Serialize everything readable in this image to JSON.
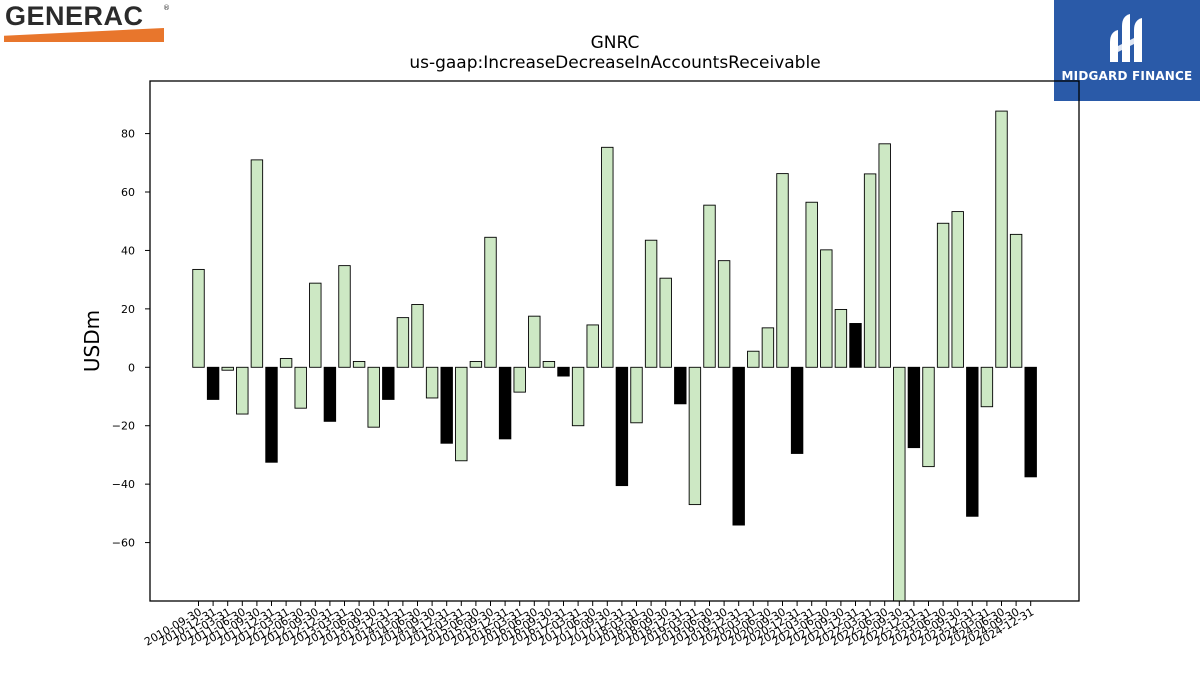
{
  "logos": {
    "left": {
      "text": "GENERAC",
      "mark": "®",
      "accent": "#e8762c"
    },
    "right": {
      "text": "MIDGARD FINANCE",
      "background": "#2a5aa8"
    }
  },
  "chart_data": {
    "type": "bar",
    "title": "GNRC",
    "subtitle": "us-gaap:IncreaseDecreaseInAccountsReceivable",
    "xlabel": "",
    "ylabel": "USDm",
    "ylim": [
      -80,
      98
    ],
    "yticks": [
      -60,
      -40,
      -20,
      0,
      20,
      40,
      60,
      80
    ],
    "grid": false,
    "colors": {
      "quarterly": "#cde8c4",
      "annual": "#000000"
    },
    "categories": [
      "2010-09-30",
      "2010-12-31",
      "2011-03-31",
      "2011-06-30",
      "2011-09-30",
      "2011-12-31",
      "2012-03-31",
      "2012-06-30",
      "2012-09-30",
      "2012-12-31",
      "2013-03-31",
      "2013-06-30",
      "2013-09-30",
      "2013-12-31",
      "2014-03-31",
      "2014-06-30",
      "2014-09-30",
      "2014-12-31",
      "2015-03-31",
      "2015-06-30",
      "2015-09-30",
      "2015-12-31",
      "2016-03-31",
      "2016-06-30",
      "2016-09-30",
      "2016-12-31",
      "2017-03-31",
      "2017-06-30",
      "2017-09-30",
      "2017-12-31",
      "2018-03-31",
      "2018-06-30",
      "2018-09-30",
      "2018-12-31",
      "2019-03-31",
      "2019-06-30",
      "2019-09-30",
      "2019-12-31",
      "2020-03-31",
      "2020-06-30",
      "2020-09-30",
      "2020-12-31",
      "2021-03-31",
      "2021-06-30",
      "2021-09-30",
      "2021-12-31",
      "2022-03-31",
      "2022-06-30",
      "2022-09-30",
      "2022-12-31",
      "2023-03-31",
      "2023-06-30",
      "2023-09-30",
      "2023-12-31",
      "2024-03-31",
      "2024-06-30",
      "2024-09-30",
      "2024-12-31"
    ],
    "values": [
      33.5,
      -11,
      -1,
      -16,
      71,
      -32.5,
      3,
      -14,
      28.8,
      -18.5,
      34.8,
      2,
      -20.5,
      -11,
      17,
      21.5,
      -10.5,
      -26,
      -32,
      2,
      44.5,
      -24.5,
      -8.5,
      17.5,
      2,
      -3,
      -20,
      14.5,
      75.3,
      -40.5,
      -19,
      43.5,
      30.5,
      -12.5,
      -47,
      55.5,
      36.5,
      -54,
      5.5,
      13.5,
      66.3,
      -29.5,
      56.5,
      40.2,
      19.8,
      15,
      66.2,
      76.5,
      -80,
      -27.5,
      -34,
      49.3,
      53.3,
      -51,
      -13.5,
      87.7,
      45.5,
      -37.5
    ],
    "annual_flags": [
      false,
      true,
      false,
      false,
      false,
      true,
      false,
      false,
      false,
      true,
      false,
      false,
      false,
      true,
      false,
      false,
      false,
      true,
      false,
      false,
      false,
      true,
      false,
      false,
      false,
      true,
      false,
      false,
      false,
      true,
      false,
      false,
      false,
      true,
      false,
      false,
      false,
      true,
      false,
      false,
      false,
      true,
      false,
      false,
      false,
      true,
      false,
      false,
      false,
      true,
      false,
      false,
      false,
      true,
      false,
      false,
      false,
      true
    ]
  }
}
